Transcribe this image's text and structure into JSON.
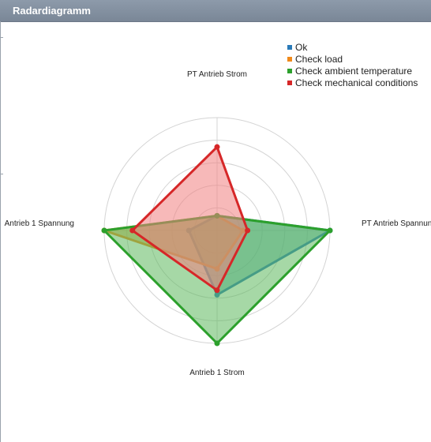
{
  "panel": {
    "title": "Radardiagramm"
  },
  "chart_data": {
    "type": "radar",
    "axes": [
      "PT Antrieb Strom",
      "PT Antrieb Spannung",
      "Antrieb 1 Strom",
      "Antrieb 1 Spannung"
    ],
    "rmax": 100,
    "grid_rings": [
      20,
      40,
      60,
      80,
      100
    ],
    "grid": true,
    "legend_position": "top-right",
    "series": [
      {
        "name": "Ok",
        "color": "#2a7ab8",
        "fill": "#4aa3a0",
        "values": [
          13,
          100,
          57,
          25
        ]
      },
      {
        "name": "Check load",
        "color": "#f0891a",
        "fill": "#c89a2a",
        "values": [
          13,
          23,
          34,
          100
        ]
      },
      {
        "name": "Check ambient temperature",
        "color": "#2ca02c",
        "fill": "#5cb85c",
        "values": [
          13,
          100,
          100,
          100
        ]
      },
      {
        "name": "Check mechanical conditions",
        "color": "#d62728",
        "fill": "#f08080",
        "values": [
          74,
          27,
          53,
          75
        ]
      }
    ]
  }
}
